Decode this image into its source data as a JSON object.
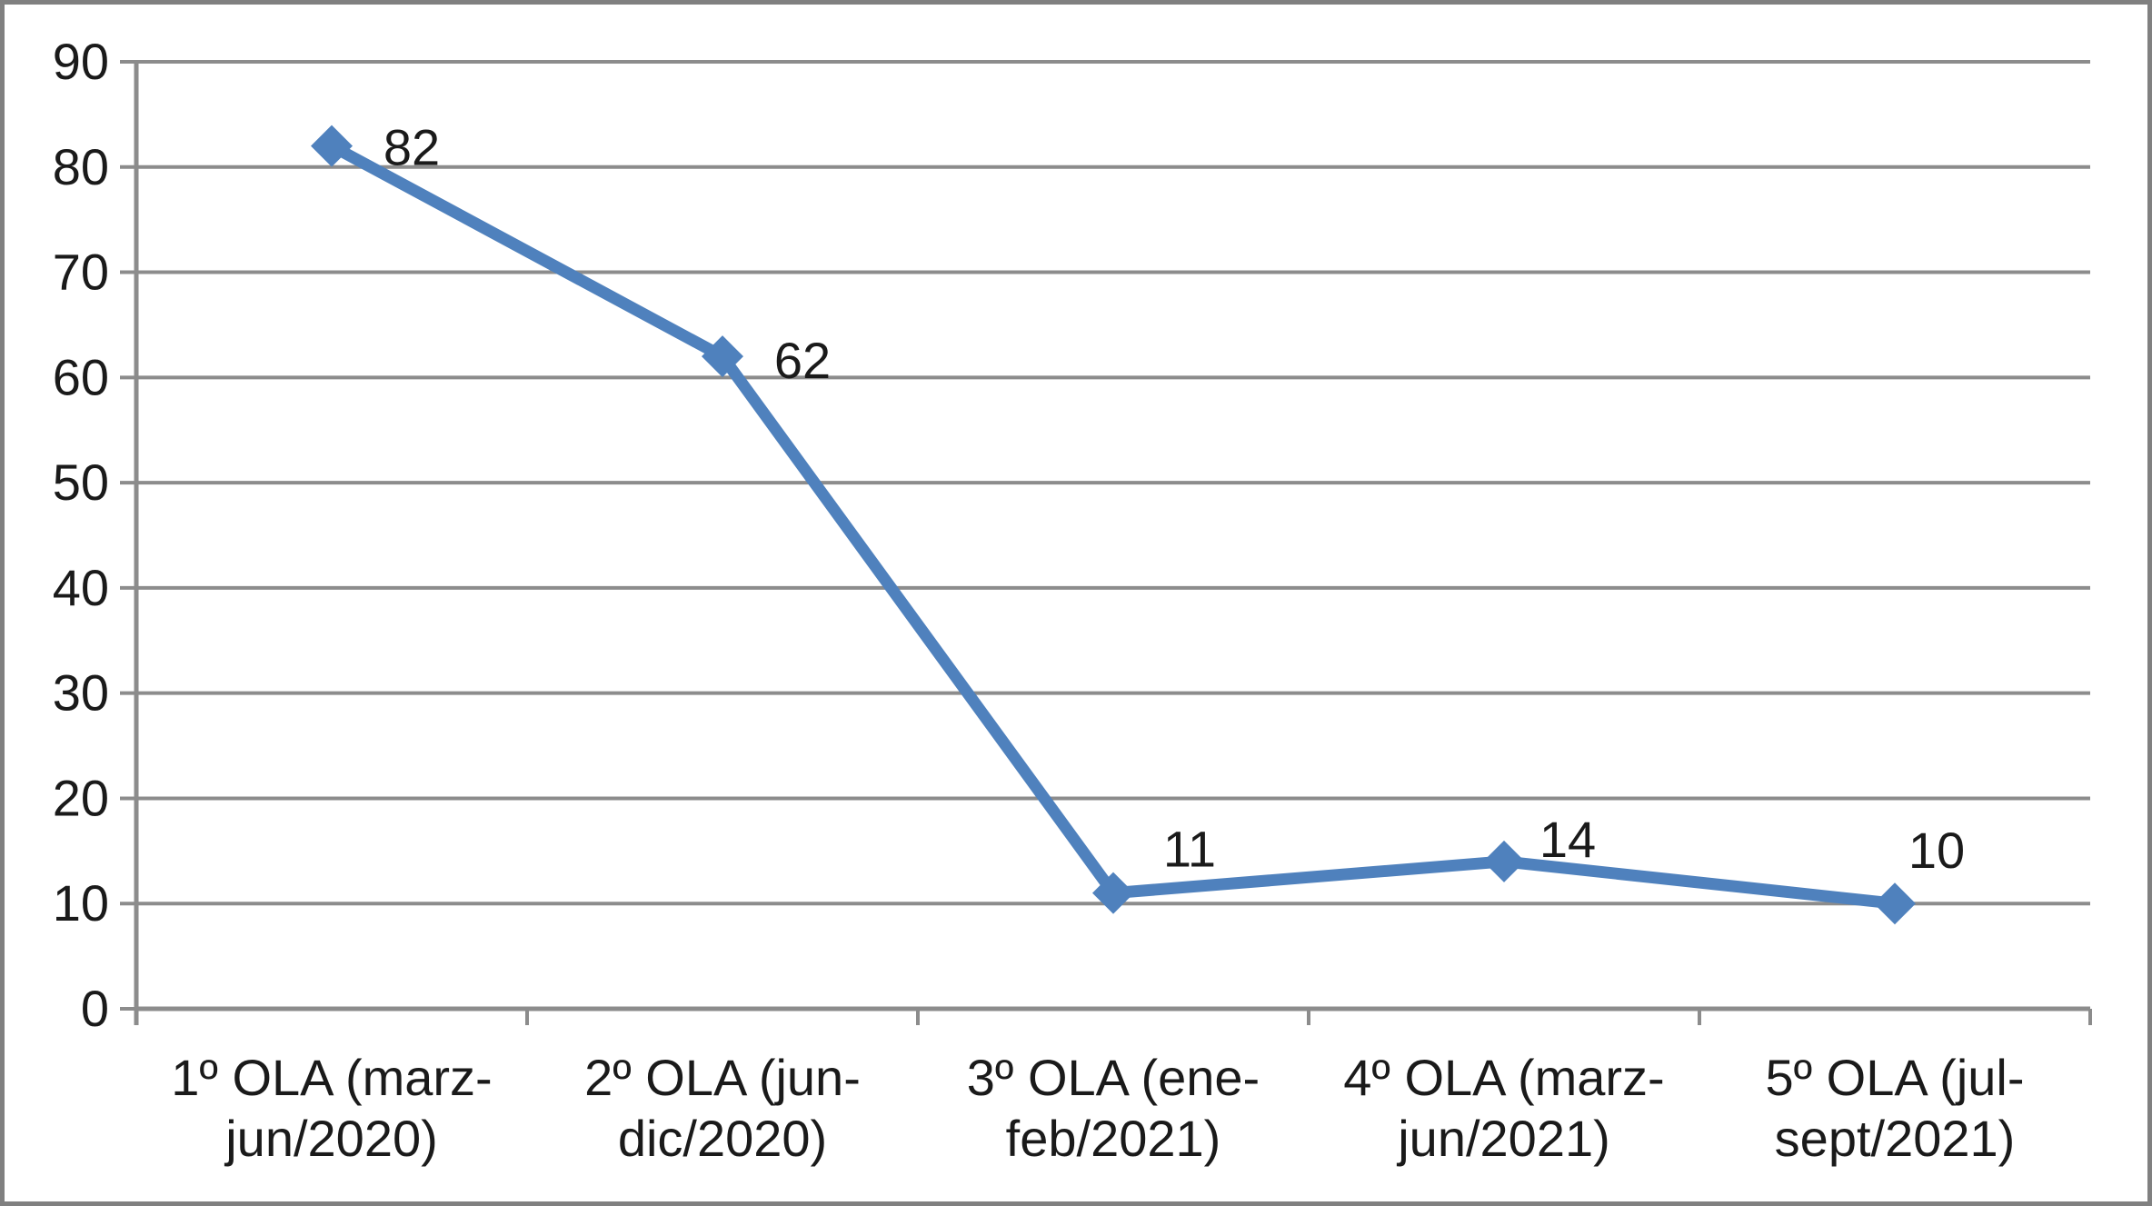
{
  "chart_data": {
    "type": "line",
    "title": "",
    "xlabel": "",
    "ylabel": "",
    "categories": [
      "1º OLA (marz-jun/2020)",
      "2º OLA (jun-dic/2020)",
      "3º OLA (ene-feb/2021)",
      "4º OLA (marz-jun/2021)",
      "5º OLA (jul-sept/2021)"
    ],
    "category_label_lines": [
      [
        "1º OLA (marz-",
        "jun/2020)"
      ],
      [
        "2º OLA (jun-",
        "dic/2020)"
      ],
      [
        "3º OLA (ene-",
        "feb/2021)"
      ],
      [
        "4º OLA (marz-",
        "jun/2021)"
      ],
      [
        "5º OLA (jul-",
        "sept/2021)"
      ]
    ],
    "series": [
      {
        "name": "",
        "values": [
          82,
          62,
          11,
          14,
          10
        ]
      }
    ],
    "data_labels": [
      "82",
      "62",
      "11",
      "14",
      "10"
    ],
    "yticks": [
      0,
      10,
      20,
      30,
      40,
      50,
      60,
      70,
      80,
      90
    ],
    "ylim": [
      0,
      90
    ],
    "grid": "horizontal",
    "legend": "none",
    "colors": {
      "series_line": "#4F81BD",
      "marker": "#4F81BD",
      "gridline": "#8C8C8C",
      "axis": "#8C8C8C",
      "text": "#1a1a1a",
      "frame_border": "#808080",
      "background": "#ffffff"
    }
  }
}
